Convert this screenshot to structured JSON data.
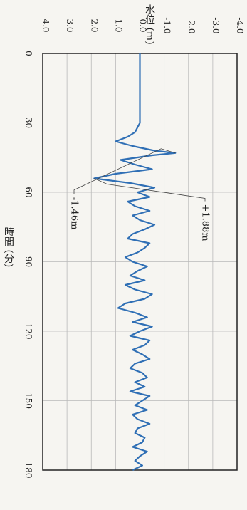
{
  "chart_data": {
    "type": "line",
    "title": "",
    "xlabel": "時間 (分)",
    "ylabel": "水位 (m)",
    "xlim": [
      0,
      180
    ],
    "ylim": [
      -4.0,
      4.0
    ],
    "x_ticks": [
      "0",
      "30",
      "60",
      "90",
      "120",
      "150",
      "180"
    ],
    "y_ticks": [
      "-4.0",
      "-3.0",
      "-2.0",
      "-1.0",
      "0.0",
      "1.0",
      "2.0",
      "3.0",
      "4.0"
    ],
    "grid": true,
    "annotations": [
      {
        "text": "+1.88m",
        "x": 54,
        "y": 1.88
      },
      {
        "text": "-1.46m",
        "x": 43,
        "y": -1.46
      }
    ],
    "series": [
      {
        "color": "#2f6fb5",
        "x": [
          0,
          10,
          20,
          30,
          34,
          36,
          38,
          40,
          42,
          43,
          44,
          46,
          48,
          50,
          52,
          54,
          56,
          58,
          60,
          62,
          64,
          66,
          68,
          70,
          72,
          74,
          76,
          78,
          80,
          82,
          84,
          86,
          88,
          90,
          92,
          94,
          96,
          98,
          100,
          102,
          104,
          106,
          108,
          110,
          112,
          114,
          116,
          118,
          120,
          122,
          124,
          126,
          128,
          130,
          132,
          134,
          136,
          138,
          140,
          142,
          144,
          146,
          148,
          150,
          152,
          154,
          156,
          158,
          160,
          162,
          164,
          166,
          168,
          170,
          172,
          174,
          176,
          178,
          180
        ],
        "y": [
          0.0,
          0.0,
          0.0,
          0.0,
          0.2,
          0.5,
          1.0,
          0.3,
          -0.6,
          -1.46,
          -0.5,
          0.8,
          0.2,
          -0.5,
          1.0,
          1.88,
          0.4,
          -0.6,
          0.1,
          -0.4,
          0.5,
          0.2,
          -0.4,
          0.3,
          0.0,
          -0.6,
          -0.2,
          0.3,
          0.5,
          -0.4,
          -0.2,
          0.1,
          0.6,
          0.3,
          -0.3,
          0.1,
          0.4,
          -0.2,
          0.6,
          0.2,
          -0.5,
          -0.2,
          0.6,
          0.9,
          0.2,
          -0.3,
          0.3,
          -0.5,
          0.0,
          0.4,
          -0.4,
          -0.2,
          0.3,
          -0.1,
          -0.4,
          0.2,
          0.4,
          -0.1,
          -0.3,
          0.2,
          -0.2,
          0.4,
          -0.4,
          -0.1,
          0.2,
          -0.3,
          0.3,
          0.1,
          -0.4,
          0.1,
          0.2,
          -0.2,
          -0.1,
          0.3,
          -0.3,
          0.0,
          0.2,
          -0.1,
          0.3
        ]
      }
    ]
  }
}
